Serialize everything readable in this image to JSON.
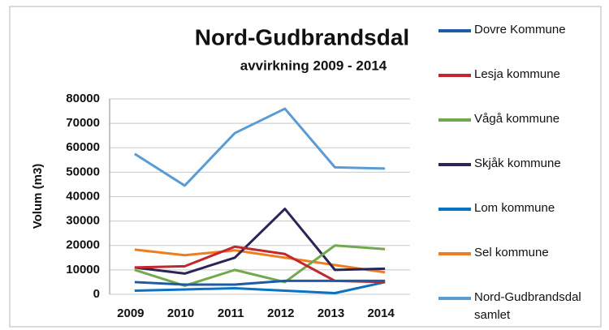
{
  "chart_data": {
    "type": "line",
    "title": "Nord-Gudbrandsdal",
    "subtitle": "avvirkning 2009 - 2014",
    "y_label": "Volum (m3)",
    "categories": [
      "2009",
      "2010",
      "2011",
      "2012",
      "2013",
      "2014"
    ],
    "series": [
      {
        "name": "Dovre Kommune",
        "color": "#1f5aa6",
        "values": [
          5000,
          4000,
          4000,
          5500,
          5500,
          5500
        ]
      },
      {
        "name": "Lesja kommune",
        "color": "#c0282d",
        "values": [
          11000,
          11500,
          19500,
          16500,
          5500,
          5000
        ]
      },
      {
        "name": "Vågå kommune",
        "color": "#72a84e",
        "values": [
          10000,
          3500,
          10000,
          5000,
          20000,
          18500
        ]
      },
      {
        "name": "Skjåk kommune",
        "color": "#2b2557",
        "values": [
          11000,
          8500,
          15000,
          35000,
          10000,
          10500
        ]
      },
      {
        "name": "Lom kommune",
        "color": "#0a72c2",
        "values": [
          1500,
          2000,
          2500,
          1500,
          500,
          5000
        ]
      },
      {
        "name": "Sel kommune",
        "color": "#f07c20",
        "values": [
          18300,
          16000,
          18000,
          15000,
          12000,
          9000
        ]
      },
      {
        "name": "Nord-Gudbrandsdal samlet",
        "color": "#5b9bd5",
        "values": [
          57500,
          44500,
          66000,
          76000,
          52000,
          51500
        ]
      }
    ],
    "ylim": [
      0,
      80000
    ],
    "yticks": [
      0,
      10000,
      20000,
      30000,
      40000,
      50000,
      60000,
      70000,
      80000
    ],
    "grid": true,
    "legend": "right"
  }
}
